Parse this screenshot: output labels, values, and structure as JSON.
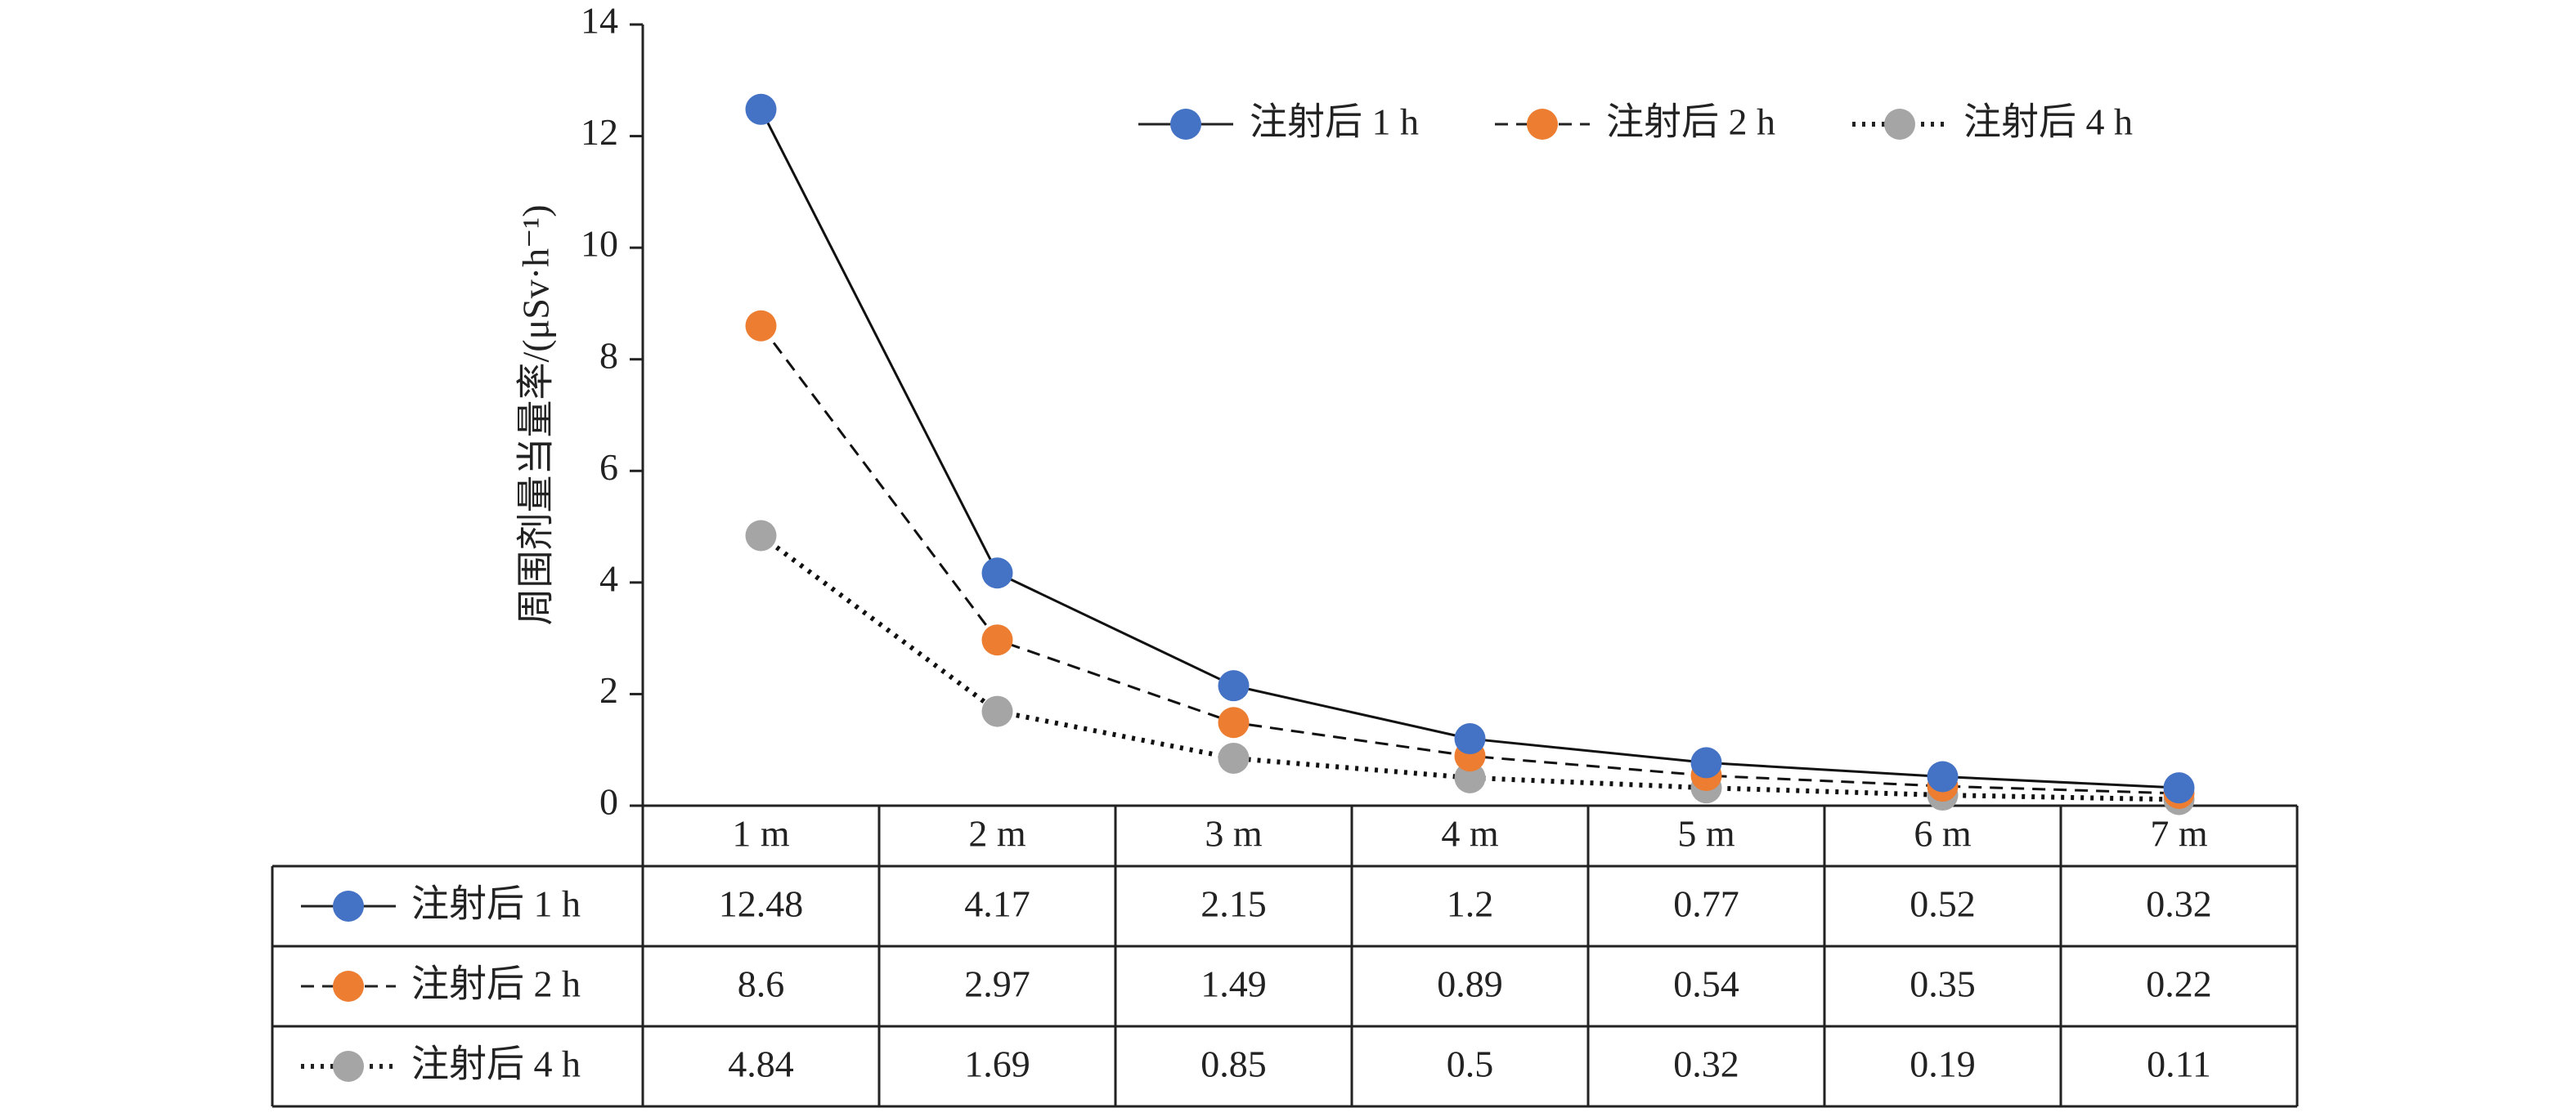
{
  "chart_data": {
    "type": "line",
    "categories": [
      "1 m",
      "2 m",
      "3 m",
      "4 m",
      "5 m",
      "6 m",
      "7 m"
    ],
    "series": [
      {
        "name": "注射后 1 h",
        "values": [
          12.48,
          4.17,
          2.15,
          1.2,
          0.77,
          0.52,
          0.32
        ],
        "color": "#4472C4",
        "line_style": "solid"
      },
      {
        "name": "注射后 2 h",
        "values": [
          8.6,
          2.97,
          1.49,
          0.89,
          0.54,
          0.35,
          0.22
        ],
        "color": "#ED7D31",
        "line_style": "dashed"
      },
      {
        "name": "注射后 4 h",
        "values": [
          4.84,
          1.69,
          0.85,
          0.5,
          0.32,
          0.19,
          0.11
        ],
        "color": "#A5A5A5",
        "line_style": "dotted"
      }
    ],
    "title": "",
    "xlabel": "",
    "ylabel": "周围剂量当量率/(μSv·h⁻¹)",
    "ylim": [
      0,
      14
    ],
    "yticks": [
      0,
      2,
      4,
      6,
      8,
      10,
      12,
      14
    ],
    "grid": false,
    "legend_position": "top-right",
    "data_table": true
  }
}
